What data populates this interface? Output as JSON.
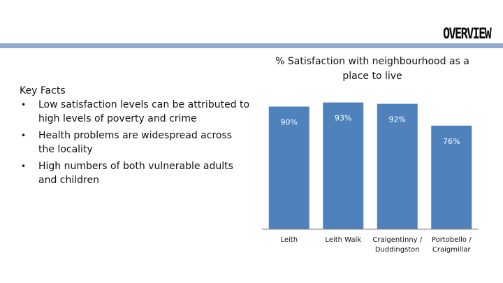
{
  "header": {
    "title": "OVERVIEW"
  },
  "key_facts": {
    "heading": "Key Facts",
    "bullets": [
      "Low satisfaction levels can be attributed to high levels of poverty and crime",
      "Health problems are widespread across the locality",
      "High numbers of both vulnerable adults and children"
    ]
  },
  "colors": {
    "bar": "#4f81bd",
    "header_bar": "#8fa9cd"
  },
  "chart_data": {
    "type": "bar",
    "title": "% Satisfaction with neighbourhood as a place to live",
    "categories": [
      "Leith",
      "Leith Walk",
      "Craigentinny / Duddingston",
      "Portobello / Craigmillar"
    ],
    "values": [
      90,
      93,
      92,
      76
    ],
    "data_labels": [
      "90%",
      "93%",
      "92%",
      "76%"
    ],
    "ylim": [
      0,
      100
    ],
    "grid": false,
    "legend": "none"
  }
}
